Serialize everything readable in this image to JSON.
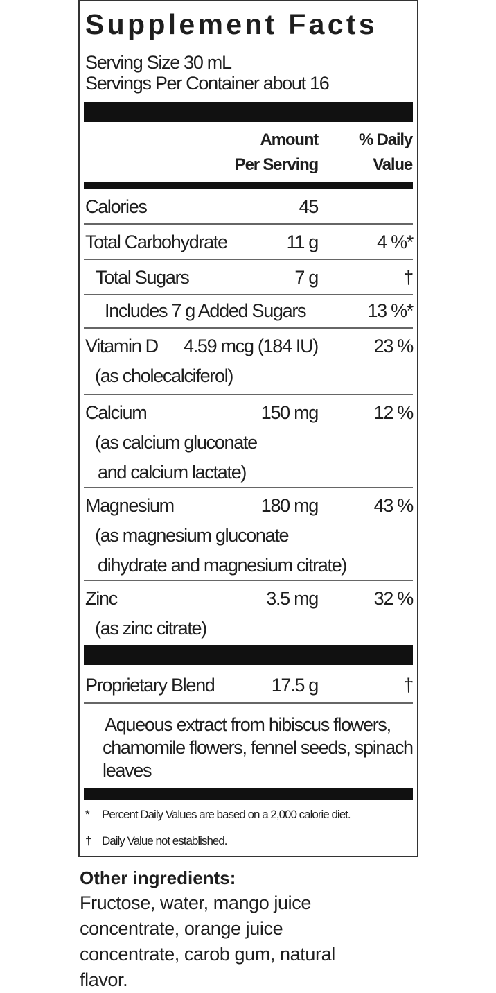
{
  "title": "Supplement Facts",
  "serving_size": "Serving Size 30 mL",
  "servings_per_container": "Servings Per Container about 16",
  "header": {
    "amount_line1": "Amount",
    "amount_line2": "Per Serving",
    "dv_line1": "% Daily",
    "dv_line2": "Value"
  },
  "rows": [
    {
      "name": "Calories",
      "amount": "45",
      "dv": ""
    },
    {
      "name": "Total Carbohydrate",
      "amount": "11 g",
      "dv": "4 %*"
    },
    {
      "name": "Total Sugars",
      "amount": "7 g",
      "dv": "†"
    },
    {
      "name": "Includes 7 g Added Sugars",
      "amount": "",
      "dv": "13 %*"
    },
    {
      "name": "Vitamin D",
      "amount": "4.59 mcg (184 IU)",
      "dv": "23 %",
      "sub": [
        "(as cholecalciferol)"
      ]
    },
    {
      "name": "Calcium",
      "amount": "150 mg",
      "dv": "12 %",
      "sub": [
        "(as calcium gluconate",
        "and calcium lactate)"
      ]
    },
    {
      "name": "Magnesium",
      "amount": "180 mg",
      "dv": "43 %",
      "sub": [
        "(as magnesium gluconate",
        "dihydrate and magnesium citrate)"
      ]
    },
    {
      "name": "Zinc",
      "amount": "3.5 mg",
      "dv": "32 %",
      "sub": [
        "(as zinc citrate)"
      ]
    },
    {
      "name": "Proprietary Blend",
      "amount": "17.5 g",
      "dv": "†"
    }
  ],
  "blend_ingredients": [
    "Aqueous extract from hibiscus flowers,",
    "chamomile flowers, fennel seeds, spinach",
    "leaves"
  ],
  "footnotes": [
    {
      "mark": "*",
      "text": "Percent Daily Values are based on a 2,000 calorie diet."
    },
    {
      "mark": "†",
      "text": "Daily Value not established."
    }
  ],
  "other_ingredients": {
    "heading": "Other ingredients:",
    "lines": [
      "Fructose, water, mango juice",
      "concentrate, orange juice",
      "concentrate, carob gum, natural",
      "flavor."
    ]
  }
}
